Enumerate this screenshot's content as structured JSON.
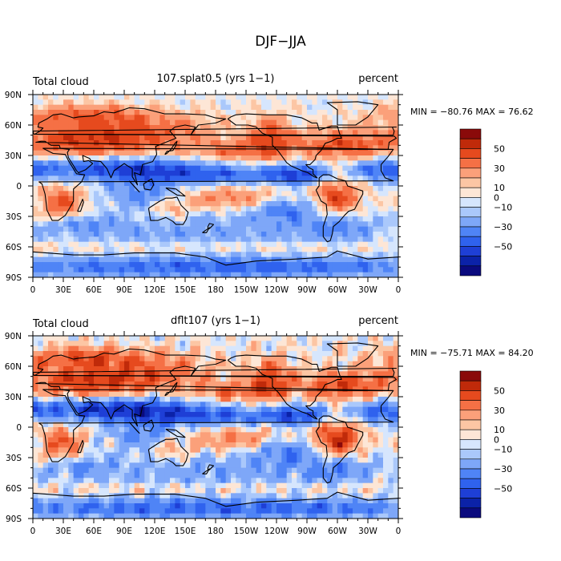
{
  "chart_data": {
    "type": "heatmap",
    "title": "DJF−JJA",
    "x_ticks": [
      "0",
      "30E",
      "60E",
      "90E",
      "120E",
      "150E",
      "180",
      "150W",
      "120W",
      "90W",
      "60W",
      "30W",
      "0"
    ],
    "y_ticks": [
      "90N",
      "60N",
      "30N",
      "0",
      "30S",
      "60S",
      "90S"
    ],
    "xlim": [
      0,
      360
    ],
    "ylim": [
      -90,
      90
    ],
    "colorbar": {
      "labels": [
        "50",
        "30",
        "10",
        "0",
        "−10",
        "−30",
        "−50"
      ],
      "levels": [
        -60,
        -50,
        -40,
        -30,
        -20,
        -10,
        -5,
        0,
        5,
        10,
        20,
        30,
        40,
        50,
        60
      ],
      "colors": [
        "#0a0a7e",
        "#0b22a8",
        "#1e3fd6",
        "#2f62ee",
        "#4f84f6",
        "#7ea7f8",
        "#aac8fb",
        "#d6e6fd",
        "#fde6d6",
        "#fcc6a4",
        "#fba07a",
        "#f57045",
        "#e64a1e",
        "#c02a0a",
        "#8a0a0a"
      ]
    },
    "panels": [
      {
        "left_label": "Total cloud",
        "center_label": "107.splat0.5 (yrs 1−1)",
        "right_label": "percent",
        "stats": "MIN = −80.76 MAX =  76.62",
        "min": -80.76,
        "max": 76.62
      },
      {
        "left_label": "Total cloud",
        "center_label": "dflt107 (yrs 1−1)",
        "right_label": "percent",
        "stats": "MIN = −75.71 MAX =  84.20",
        "min": -75.71,
        "max": 84.2
      }
    ]
  }
}
